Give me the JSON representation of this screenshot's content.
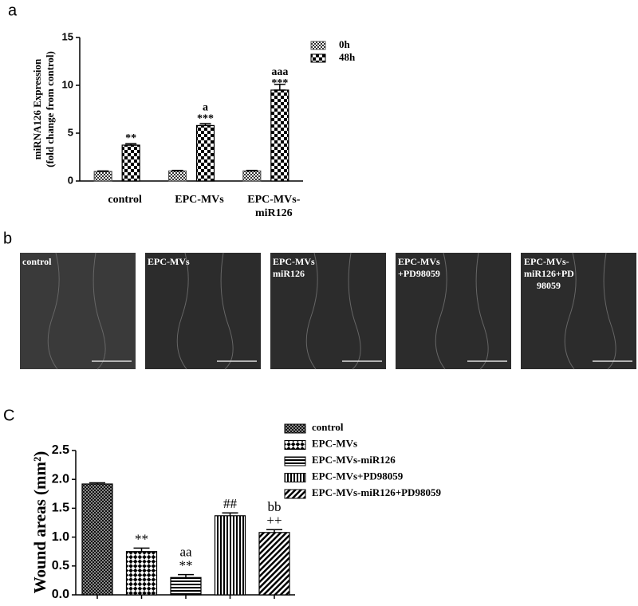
{
  "panel_labels": [
    "a",
    "b",
    "C"
  ],
  "micrographs": {
    "labels": [
      [
        "control"
      ],
      [
        "EPC-MVs"
      ],
      [
        "EPC-MVs",
        "miR126"
      ],
      [
        "EPC-MVs",
        "+PD98059"
      ],
      [
        "EPC-MVs-",
        "miR126+PD",
        "98059"
      ]
    ]
  },
  "chart_data": [
    {
      "type": "grouped_bar",
      "ylabel": [
        "miRNA126 Expression",
        "(fold change from control)"
      ],
      "categories": [
        [
          "control"
        ],
        [
          "EPC-MVs"
        ],
        [
          "EPC-MVs-",
          "miR126"
        ]
      ],
      "series": [
        {
          "name": "0h",
          "color": "#555555",
          "pattern": "fine-check",
          "values": [
            1,
            1.05,
            1.05
          ],
          "errors": [
            0.05,
            0.06,
            0.06
          ]
        },
        {
          "name": "48h",
          "color": "#000000",
          "pattern": "check",
          "values": [
            3.75,
            5.8,
            9.5
          ],
          "errors": [
            0.15,
            0.2,
            0.6
          ],
          "annotations": [
            [
              "**"
            ],
            [
              "a",
              "***"
            ],
            [
              "aaa",
              "***"
            ]
          ]
        }
      ],
      "ylim": [
        0,
        15
      ],
      "yticks": [
        0,
        5,
        10,
        15
      ],
      "legend": "upper right"
    },
    {
      "type": "bar",
      "ylabel": "Wound areas (mm²)",
      "categories": [
        "control",
        "EPC-MVs",
        "EPC-MVs-miR126",
        "EPC-MVs+PD98059",
        "EPC-MVs-miR126+PD98059"
      ],
      "values": [
        1.92,
        0.75,
        0.3,
        1.37,
        1.08
      ],
      "errors": [
        0.02,
        0.06,
        0.05,
        0.05,
        0.05
      ],
      "annotations": [
        [],
        [
          "**"
        ],
        [
          "aa",
          "**"
        ],
        [
          "##"
        ],
        [
          "bb",
          "++"
        ]
      ],
      "patterns": [
        "dense",
        "diamond",
        "hline",
        "vline",
        "diag"
      ],
      "color": "#000000",
      "ylim": [
        0,
        2.5
      ],
      "yticks": [
        {
          "value": 0,
          "label": "0.0"
        },
        {
          "value": 0.5,
          "label": "0.5"
        },
        {
          "value": 1,
          "label": "1.0"
        },
        {
          "value": 1.5,
          "label": "1.5"
        },
        {
          "value": 2,
          "label": "2.0"
        },
        {
          "value": 2.5,
          "label": "2.5"
        }
      ],
      "legend": "upper right"
    }
  ]
}
